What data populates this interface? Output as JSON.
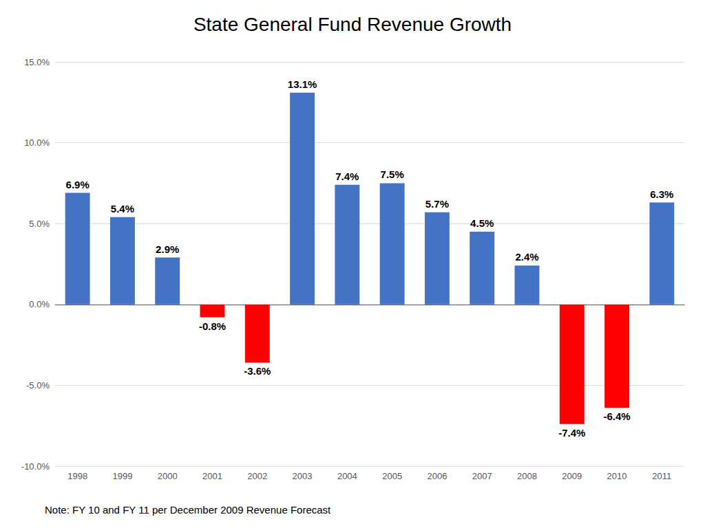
{
  "chart_data": {
    "type": "bar",
    "title": "State General Fund Revenue Growth",
    "note": "Note: FY 10 and FY 11 per December 2009 Revenue Forecast",
    "categories": [
      "1998",
      "1999",
      "2000",
      "2001",
      "2002",
      "2003",
      "2004",
      "2005",
      "2006",
      "2007",
      "2008",
      "2009",
      "2010",
      "2011"
    ],
    "values": [
      6.9,
      5.4,
      2.9,
      -0.8,
      -3.6,
      13.1,
      7.4,
      7.5,
      5.7,
      4.5,
      2.4,
      -7.4,
      -6.4,
      6.3
    ],
    "value_labels": [
      "6.9%",
      "5.4%",
      "2.9%",
      "-0.8%",
      "-3.6%",
      "13.1%",
      "7.4%",
      "7.5%",
      "5.7%",
      "4.5%",
      "2.4%",
      "-7.4%",
      "-6.4%",
      "6.3%"
    ],
    "colors": [
      "#4472C4",
      "#4472C4",
      "#4472C4",
      "#FF0000",
      "#FF0000",
      "#4472C4",
      "#4472C4",
      "#4472C4",
      "#4472C4",
      "#4472C4",
      "#4472C4",
      "#FF0000",
      "#FF0000",
      "#4472C4"
    ],
    "ylim": [
      -10.0,
      15.0
    ],
    "yticks": [
      {
        "value": -10.0,
        "label": "-10.0%"
      },
      {
        "value": -5.0,
        "label": "-5.0%"
      },
      {
        "value": 0.0,
        "label": "0.0%"
      },
      {
        "value": 5.0,
        "label": "5.0%"
      },
      {
        "value": 10.0,
        "label": "10.0%"
      },
      {
        "value": 15.0,
        "label": "15.0%"
      }
    ],
    "grid": true,
    "data_labels": true
  }
}
